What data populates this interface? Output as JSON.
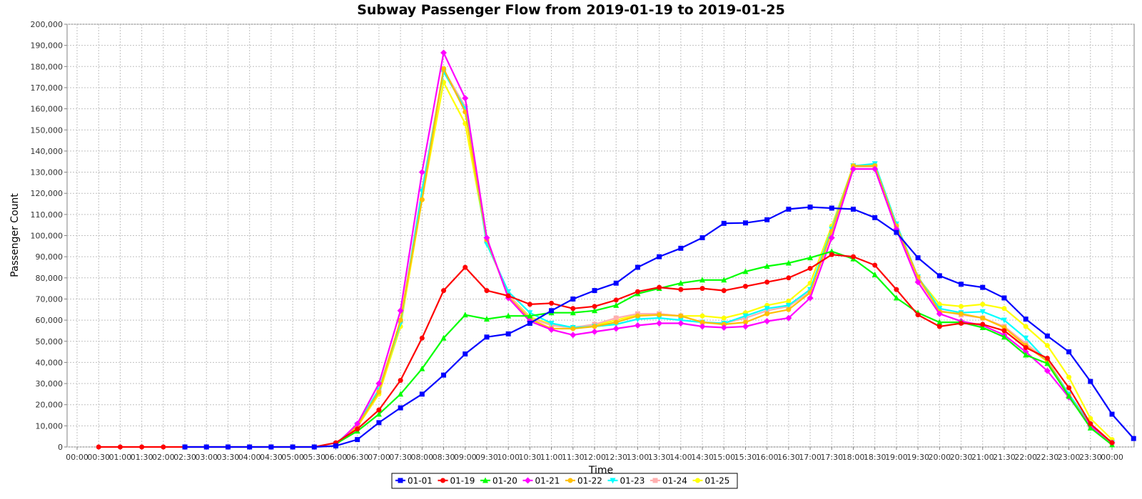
{
  "chart_data": {
    "type": "line",
    "title": "Subway Passenger Flow from 2019-01-19 to 2019-01-25",
    "xlabel": "Time",
    "ylabel": "Passenger Count",
    "ylim": [
      0,
      200000
    ],
    "y_ticks": [
      "0",
      "10,000",
      "20,000",
      "30,000",
      "40,000",
      "50,000",
      "60,000",
      "70,000",
      "80,000",
      "90,000",
      "100,000",
      "110,000",
      "120,000",
      "130,000",
      "140,000",
      "150,000",
      "160,000",
      "170,000",
      "180,000",
      "190,000",
      "200,000"
    ],
    "x_ticks": [
      "00:00",
      "00:30",
      "01:00",
      "01:30",
      "02:00",
      "02:30",
      "03:00",
      "03:30",
      "04:00",
      "04:30",
      "05:00",
      "05:30",
      "06:00",
      "06:30",
      "07:00",
      "07:30",
      "08:00",
      "08:30",
      "09:00",
      "09:30",
      "10:00",
      "10:30",
      "11:00",
      "11:30",
      "12:00",
      "12:30",
      "13:00",
      "13:30",
      "14:00",
      "14:30",
      "15:00",
      "15:30",
      "16:00",
      "16:30",
      "17:00",
      "17:30",
      "18:00",
      "18:30",
      "19:00",
      "19:30",
      "20:00",
      "20:30",
      "21:00",
      "21:30",
      "22:00",
      "22:30",
      "23:00",
      "23:30",
      "00:00"
    ],
    "grid": true,
    "legend_position": "bottom-center",
    "series": [
      {
        "name": "01-01",
        "color": "#0000ff",
        "marker": "square",
        "start_index": 5,
        "values": [
          0,
          0,
          0,
          0,
          0,
          0,
          0,
          500,
          3500,
          11500,
          18500,
          25000,
          34000,
          44000,
          52000,
          53500,
          58500,
          64500,
          70000,
          74000,
          77500,
          85000,
          90000,
          94000,
          99000,
          105800,
          106000,
          107500,
          112500,
          113500,
          113000,
          112500,
          108500,
          101500,
          89500,
          81000,
          77000,
          75500,
          70500,
          60500,
          52500,
          45000,
          31000,
          15500,
          4000
        ]
      },
      {
        "name": "01-19",
        "color": "#ff0000",
        "marker": "circle",
        "start_index": 1,
        "values": [
          0,
          0,
          0,
          0,
          0,
          0,
          0,
          0,
          0,
          0,
          0,
          2000,
          8500,
          17500,
          31500,
          51500,
          74000,
          85000,
          74000,
          71500,
          67500,
          68000,
          65500,
          66500,
          69500,
          73500,
          75500,
          74500,
          75000,
          74000,
          76000,
          78000,
          80000,
          84500,
          91000,
          90000,
          86000,
          74500,
          62500,
          57000,
          58500,
          58000,
          55000,
          47000,
          42000,
          28000,
          11000,
          2000
        ]
      },
      {
        "name": "01-20",
        "color": "#00ff00",
        "marker": "triangle",
        "start_index": 12,
        "values": [
          1500,
          7500,
          15500,
          25000,
          37000,
          51500,
          62500,
          60500,
          62000,
          62000,
          63500,
          63500,
          64500,
          67000,
          72500,
          75000,
          77500,
          79000,
          79000,
          83000,
          85500,
          87000,
          89500,
          92500,
          89000,
          81500,
          70500,
          63500,
          59000,
          59000,
          56500,
          52000,
          43500,
          39500,
          24000,
          9000,
          1000
        ]
      },
      {
        "name": "01-21",
        "color": "#ff00ff",
        "marker": "diamond",
        "start_index": 12,
        "values": [
          1000,
          11000,
          30000,
          64500,
          130000,
          186500,
          165000,
          99000,
          70500,
          59500,
          55500,
          53000,
          54500,
          56000,
          57500,
          58500,
          58500,
          57000,
          56500,
          57000,
          59500,
          61000,
          70500,
          99000,
          131500,
          131500,
          103000,
          78000,
          63000,
          59500,
          57500,
          53000,
          45000,
          36000,
          23500,
          10000,
          2000
        ]
      },
      {
        "name": "01-22",
        "color": "#ffc000",
        "marker": "circle",
        "start_index": 12,
        "values": [
          1000,
          10000,
          26000,
          60000,
          117000,
          179000,
          158500,
          98000,
          71000,
          60500,
          56000,
          56000,
          57000,
          59000,
          62000,
          62500,
          62000,
          59000,
          58000,
          59000,
          63000,
          65000,
          73000,
          102000,
          133000,
          133000,
          104500,
          80500,
          64000,
          63000,
          61000,
          56500,
          48000,
          40500,
          24000,
          10000,
          2000
        ]
      },
      {
        "name": "01-23",
        "color": "#00ffff",
        "marker": "triangle-down",
        "start_index": 12,
        "values": [
          1500,
          10500,
          27000,
          58500,
          121000,
          177500,
          160000,
          96000,
          73500,
          63500,
          58500,
          56500,
          57000,
          58000,
          60500,
          61000,
          60000,
          59000,
          58500,
          62000,
          65500,
          67000,
          74500,
          103000,
          133000,
          134000,
          105500,
          80500,
          65500,
          63500,
          64000,
          60000,
          51500,
          40500,
          25000,
          10500,
          2000
        ]
      },
      {
        "name": "01-24",
        "color": "#ffafaf",
        "marker": "square",
        "start_index": 12,
        "values": [
          1000,
          10500,
          27500,
          59500,
          122000,
          178500,
          161000,
          97500,
          72000,
          61000,
          57500,
          56500,
          58000,
          61000,
          63000,
          63000,
          62000,
          59000,
          58500,
          61000,
          64500,
          66500,
          73500,
          101500,
          132500,
          132500,
          104500,
          79500,
          64500,
          62500,
          61000,
          57000,
          49000,
          41000,
          25000,
          10000,
          2000
        ]
      },
      {
        "name": "01-25",
        "color": "#ffff00",
        "marker": "circle",
        "start_index": 12,
        "values": [
          1000,
          9500,
          25000,
          57000,
          117000,
          172500,
          153000,
          97500,
          72000,
          61500,
          58000,
          56500,
          57500,
          60000,
          62500,
          63000,
          62000,
          62000,
          61000,
          63500,
          67000,
          69000,
          77500,
          104500,
          133000,
          133500,
          104500,
          80000,
          67500,
          66500,
          67500,
          65500,
          57000,
          48000,
          33000,
          13500,
          3500
        ]
      }
    ]
  }
}
